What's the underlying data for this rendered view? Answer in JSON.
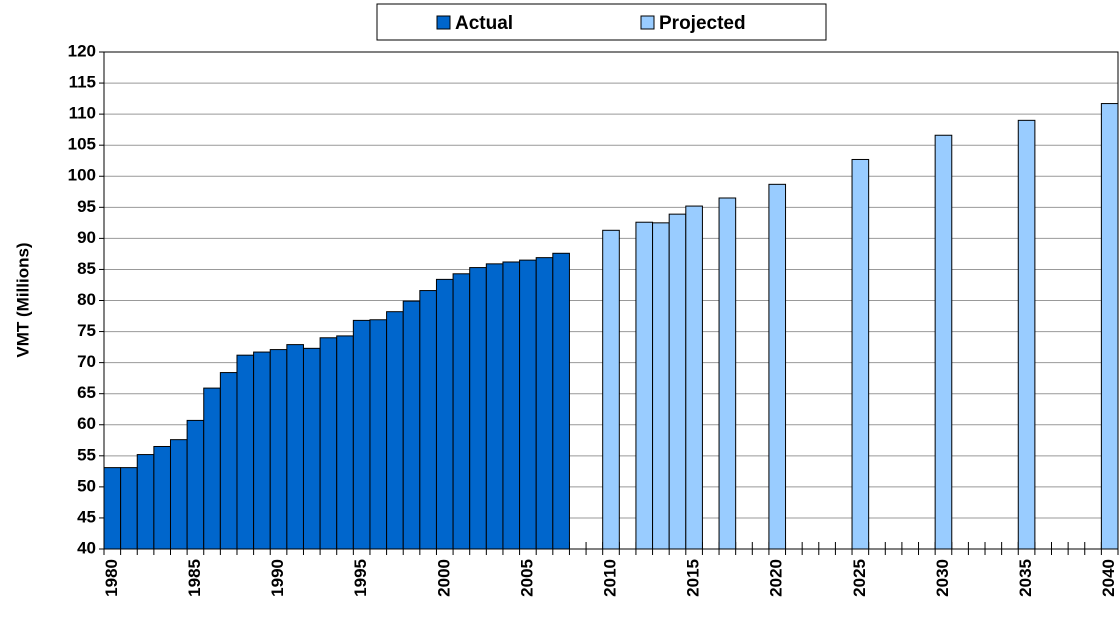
{
  "chart_data": {
    "type": "bar",
    "y_label": "VMT (Millions)",
    "legend": "top",
    "grid": true,
    "ylim": [
      40,
      120
    ],
    "yticks": [
      40,
      45,
      50,
      55,
      60,
      65,
      70,
      75,
      80,
      85,
      90,
      95,
      100,
      105,
      110,
      115,
      120
    ],
    "categories": [
      "1980",
      null,
      null,
      null,
      null,
      "1985",
      null,
      null,
      null,
      null,
      "1990",
      null,
      null,
      null,
      null,
      "1995",
      null,
      null,
      null,
      null,
      "2000",
      null,
      null,
      null,
      null,
      "2005",
      null,
      null,
      null,
      null,
      "2010",
      null,
      null,
      null,
      null,
      "2015",
      null,
      null,
      null,
      null,
      "2020",
      null,
      null,
      null,
      null,
      "2025",
      null,
      null,
      null,
      null,
      "2030",
      null,
      null,
      null,
      null,
      "2035",
      null,
      null,
      null,
      null,
      "2040"
    ],
    "series": [
      {
        "name": "Actual",
        "color": "#0066cc",
        "values": [
          53.1,
          53.1,
          55.2,
          56.5,
          57.6,
          60.7,
          65.9,
          68.4,
          71.2,
          71.7,
          72.1,
          72.9,
          72.3,
          74.0,
          74.3,
          76.8,
          76.9,
          78.2,
          79.9,
          81.6,
          83.4,
          84.3,
          85.3,
          85.9,
          86.2,
          86.5,
          86.9,
          87.6,
          null,
          null,
          null,
          null,
          null,
          null,
          null,
          null,
          null,
          null,
          null,
          null,
          null,
          null,
          null,
          null,
          null,
          null,
          null,
          null,
          null,
          null,
          null,
          null,
          null,
          null,
          null,
          null,
          null,
          null,
          null,
          null,
          null
        ]
      },
      {
        "name": "Projected",
        "color": "#99ccff",
        "values": [
          null,
          null,
          null,
          null,
          null,
          null,
          null,
          null,
          null,
          null,
          null,
          null,
          null,
          null,
          null,
          null,
          null,
          null,
          null,
          null,
          null,
          null,
          null,
          null,
          null,
          null,
          null,
          null,
          null,
          null,
          91.3,
          null,
          92.6,
          92.5,
          93.9,
          95.2,
          null,
          96.5,
          null,
          null,
          98.7,
          null,
          null,
          null,
          null,
          102.7,
          null,
          null,
          null,
          null,
          106.6,
          null,
          null,
          null,
          null,
          109.0,
          null,
          null,
          null,
          null,
          111.7
        ]
      }
    ]
  }
}
